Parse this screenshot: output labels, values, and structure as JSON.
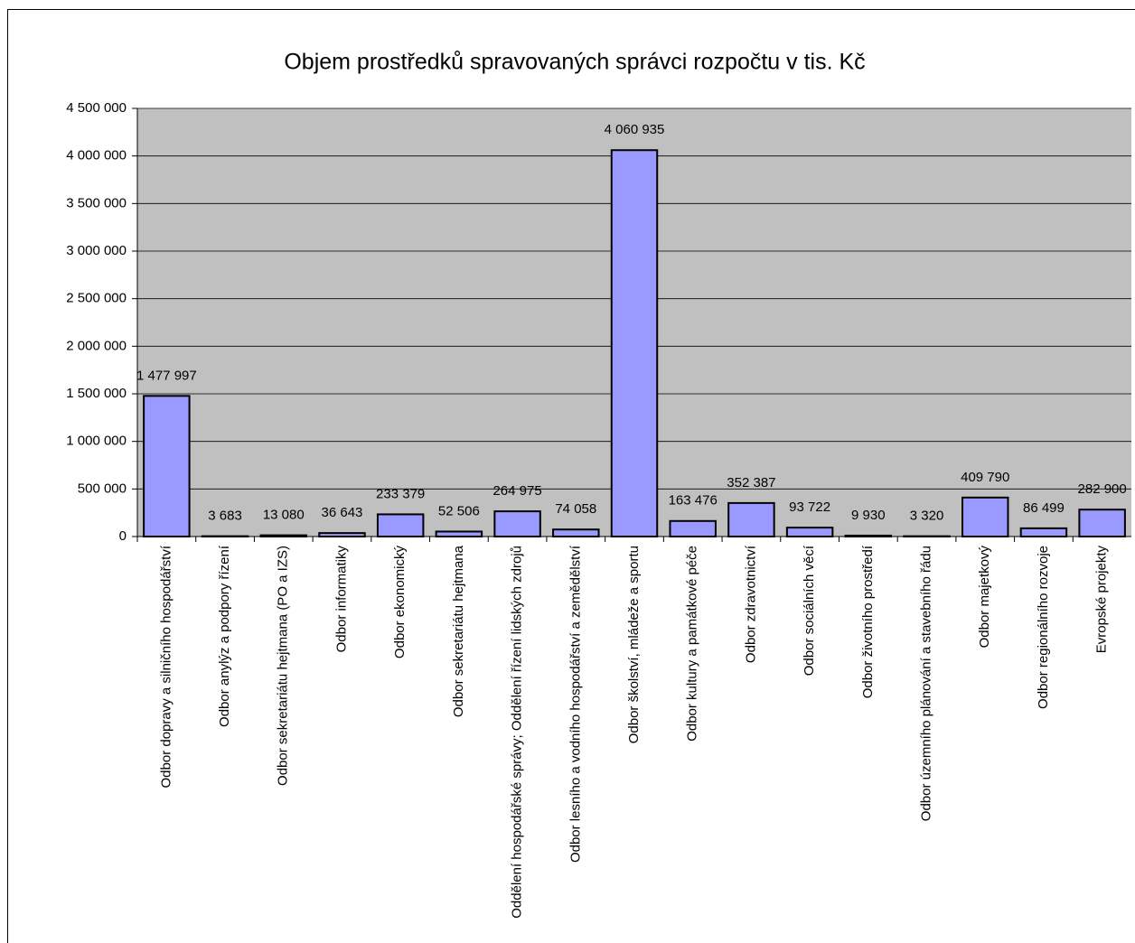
{
  "chart_data": {
    "type": "bar",
    "title": "Objem prostředků spravovaných správci rozpočtu v tis. Kč",
    "categories": [
      "Odbor dopravy a silničního hospodářství",
      "Odbor anylýz a podpory řízení",
      "Odbor sekretariátu hejtmana (PO a IZS)",
      "Odbor informatiky",
      "Odbor ekonomický",
      "Odbor sekretariátu hejtmana",
      "Oddělení hospodářské správy; Oddělení řízení lidských zdrojů",
      "Odbor lesního a vodního hospodářství a zemědělství",
      "Odbor školství, mládeže a sportu",
      "Odbor kultury a památkové péče",
      "Odbor zdravotnictví",
      "Odbor sociálních věcí",
      "Odbor životního prostředí",
      "Odbor územního plánování a stavebního řádu",
      "Odbor majetkový",
      "Odbor regionálního rozvoje",
      "Evropské projekty"
    ],
    "values": [
      1477997,
      3683,
      13080,
      36643,
      233379,
      52506,
      264975,
      74058,
      4060935,
      163476,
      352387,
      93722,
      9930,
      3320,
      409790,
      86499,
      282900
    ],
    "value_labels": [
      "1 477 997",
      "3 683",
      "13 080",
      "36 643",
      "233 379",
      "52 506",
      "264 975",
      "74 058",
      "4 060 935",
      "163 476",
      "352 387",
      "93 722",
      "9 930",
      "3 320",
      "409 790",
      "86 499",
      "282 900"
    ],
    "color": "#9999ff",
    "ylim": [
      0,
      4500000
    ],
    "yticks": [
      {
        "value": 0,
        "label": "0"
      },
      {
        "value": 500000,
        "label": "500 000"
      },
      {
        "value": 1000000,
        "label": "1 000 000"
      },
      {
        "value": 1500000,
        "label": "1 500 000"
      },
      {
        "value": 2000000,
        "label": "2 000 000"
      },
      {
        "value": 2500000,
        "label": "2 500 000"
      },
      {
        "value": 3000000,
        "label": "3 000 000"
      },
      {
        "value": 3500000,
        "label": "3 500 000"
      },
      {
        "value": 4000000,
        "label": "4 000 000"
      },
      {
        "value": 4500000,
        "label": "4 500 000"
      }
    ],
    "grid": true
  }
}
